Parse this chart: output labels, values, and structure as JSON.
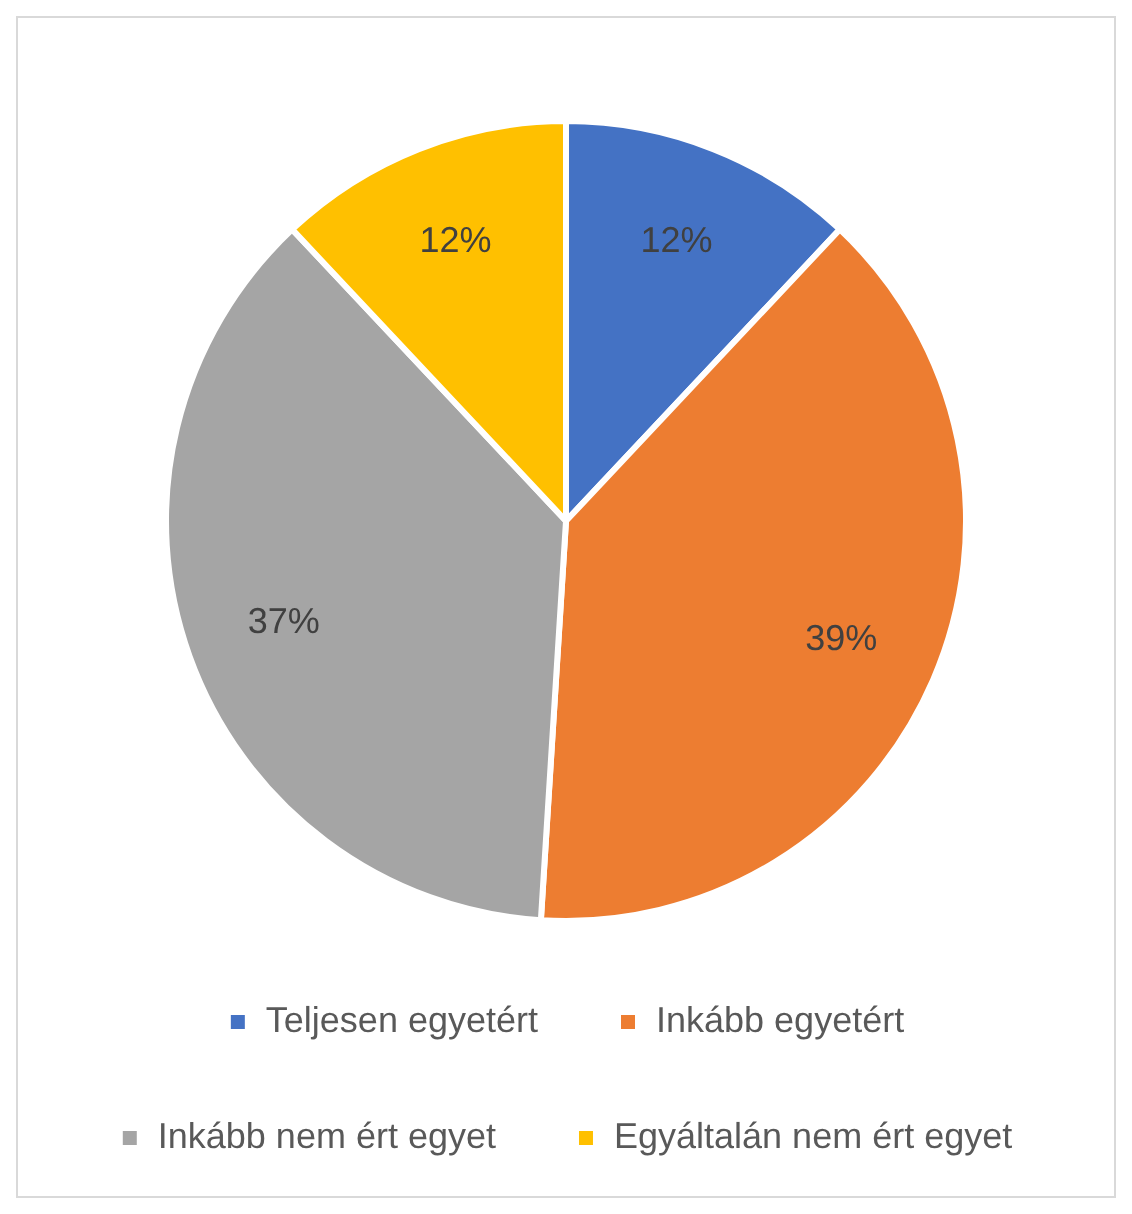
{
  "chart_data": {
    "type": "pie",
    "categories": [
      "Teljesen egyetért",
      "Inkább egyetért",
      "Inkább nem ért egyet",
      "Egyáltalán nem ért egyet"
    ],
    "values": [
      12,
      39,
      37,
      12
    ],
    "colors": [
      "#4472c4",
      "#ed7d31",
      "#a5a5a5",
      "#ffc000"
    ],
    "value_labels": [
      "12%",
      "39%",
      "37%",
      "12%"
    ],
    "legend": "bottom"
  }
}
